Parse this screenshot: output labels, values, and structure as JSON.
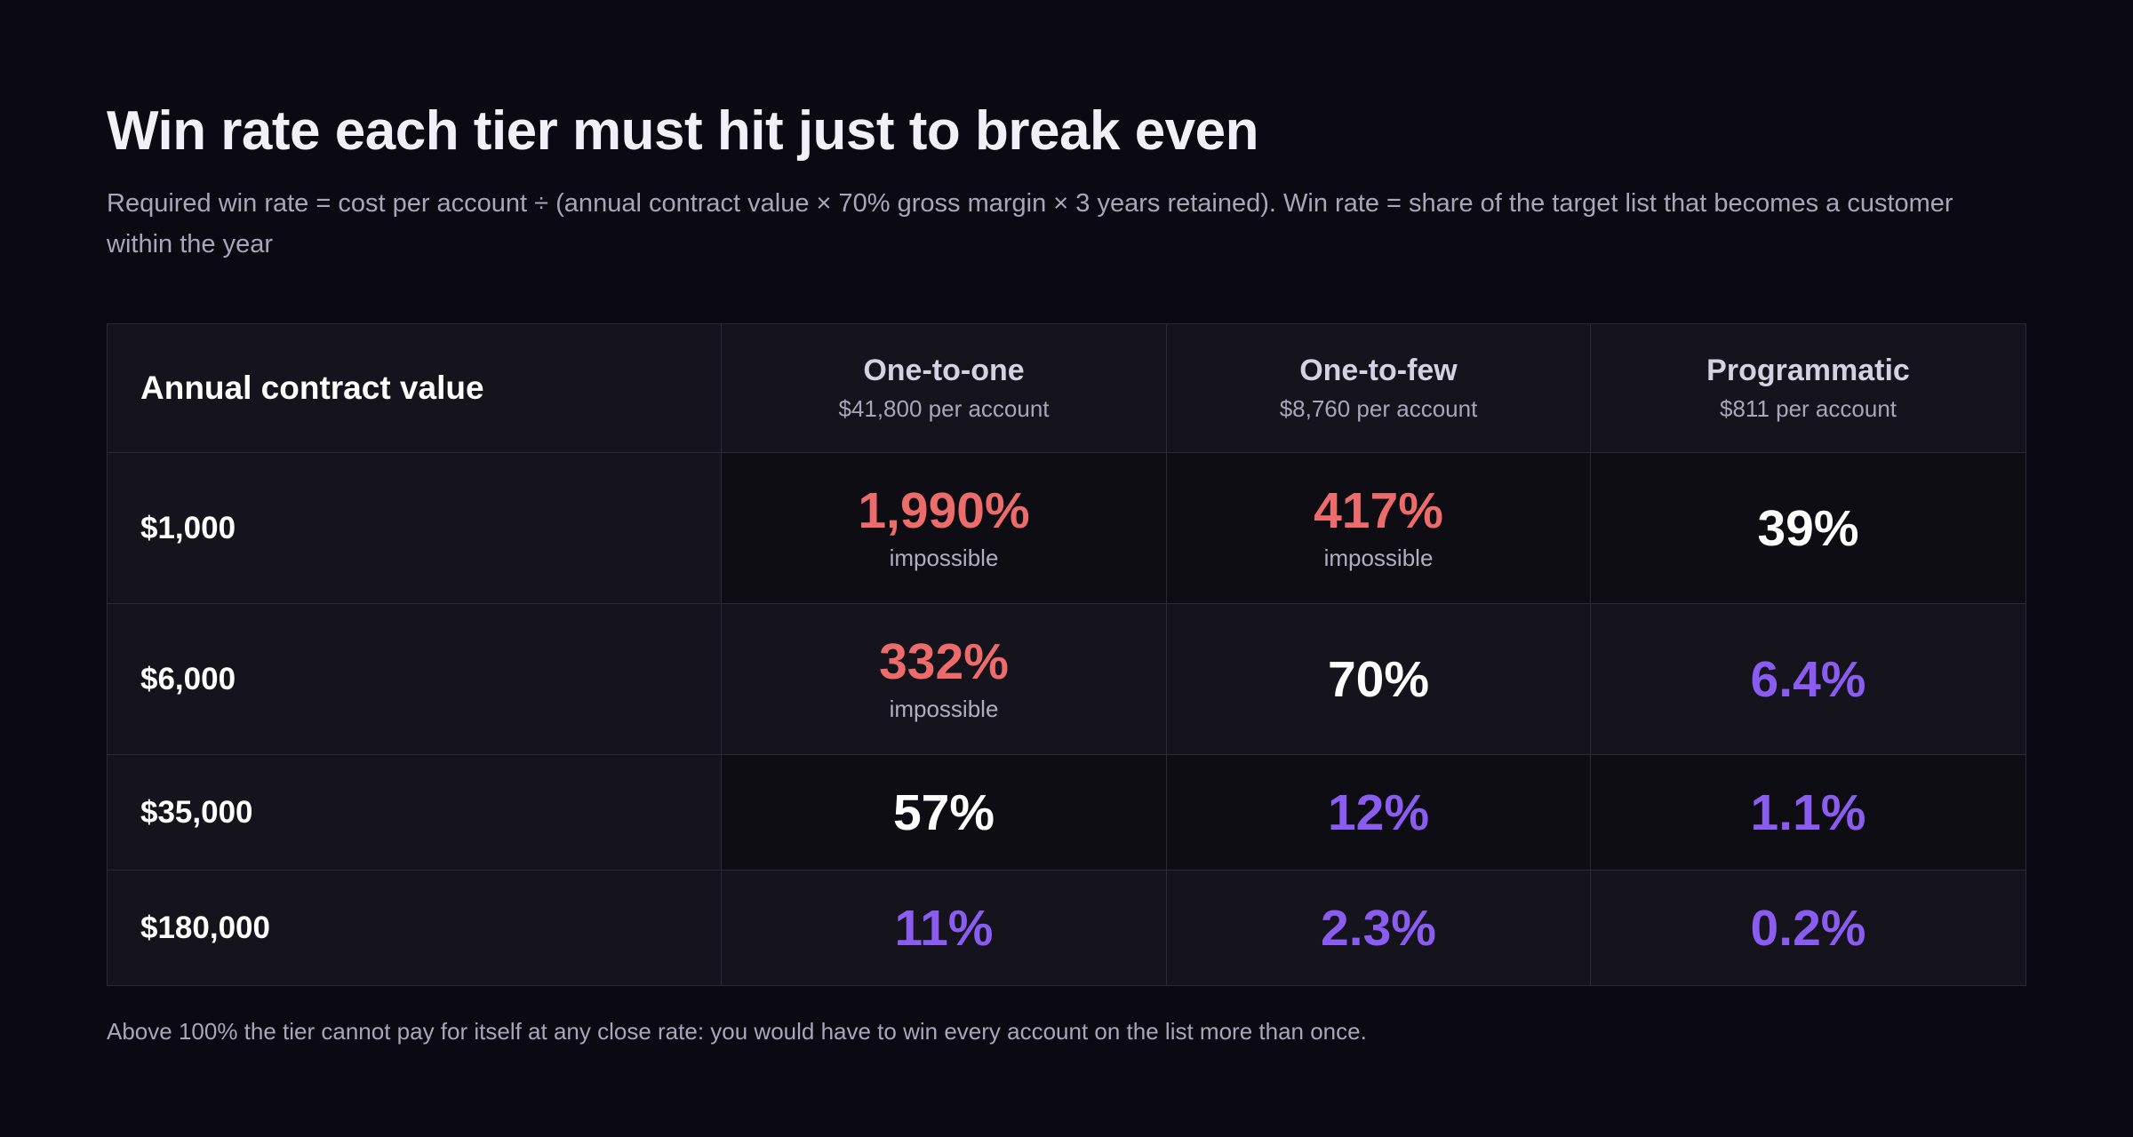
{
  "header": {
    "title": "Win rate each tier must hit just to break even",
    "subtitle": "Required win rate = cost per account ÷ (annual contract value × 70% gross margin × 3 years retained). Win rate = share of the target list that becomes a customer within the year"
  },
  "table": {
    "corner": "Annual contract value",
    "columns": [
      {
        "name": "One-to-one",
        "cost": "$41,800 per account"
      },
      {
        "name": "One-to-few",
        "cost": "$8,760 per account"
      },
      {
        "name": "Programmatic",
        "cost": "$811 per account"
      }
    ],
    "rows": [
      {
        "label": "$1,000",
        "cells": [
          {
            "value": "1,990%",
            "note": "impossible",
            "color": "#ec6b6b"
          },
          {
            "value": "417%",
            "note": "impossible",
            "color": "#ec6b6b"
          },
          {
            "value": "39%",
            "color": "#ffffff"
          }
        ]
      },
      {
        "label": "$6,000",
        "cells": [
          {
            "value": "332%",
            "note": "impossible",
            "color": "#ec6b6b"
          },
          {
            "value": "70%",
            "color": "#ffffff"
          },
          {
            "value": "6.4%",
            "color": "#8b5cf0"
          }
        ]
      },
      {
        "label": "$35,000",
        "cells": [
          {
            "value": "57%",
            "color": "#ffffff"
          },
          {
            "value": "12%",
            "color": "#8b5cf0"
          },
          {
            "value": "1.1%",
            "color": "#8b5cf0"
          }
        ]
      },
      {
        "label": "$180,000",
        "cells": [
          {
            "value": "11%",
            "color": "#8b5cf0"
          },
          {
            "value": "2.3%",
            "color": "#8b5cf0"
          },
          {
            "value": "0.2%",
            "color": "#8b5cf0"
          }
        ]
      }
    ]
  },
  "footnote": "Above 100% the tier cannot pay for itself at any close rate: you would have to win every account on the list more than once."
}
